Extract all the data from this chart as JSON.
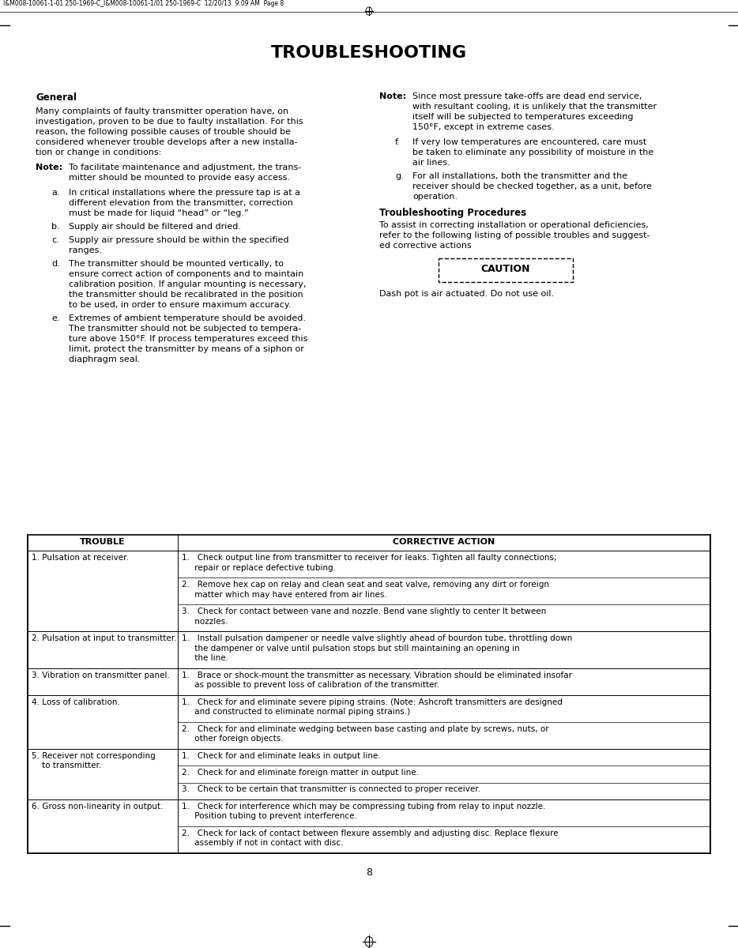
{
  "page_header": "I&M008-10061-1-01 250-1969-C_I&M008-10061-1/01 250-1969-C  12/20/13  9:09 AM  Page 8",
  "title": "TROUBLESHOOTING",
  "bg_color": "#ffffff"
}
